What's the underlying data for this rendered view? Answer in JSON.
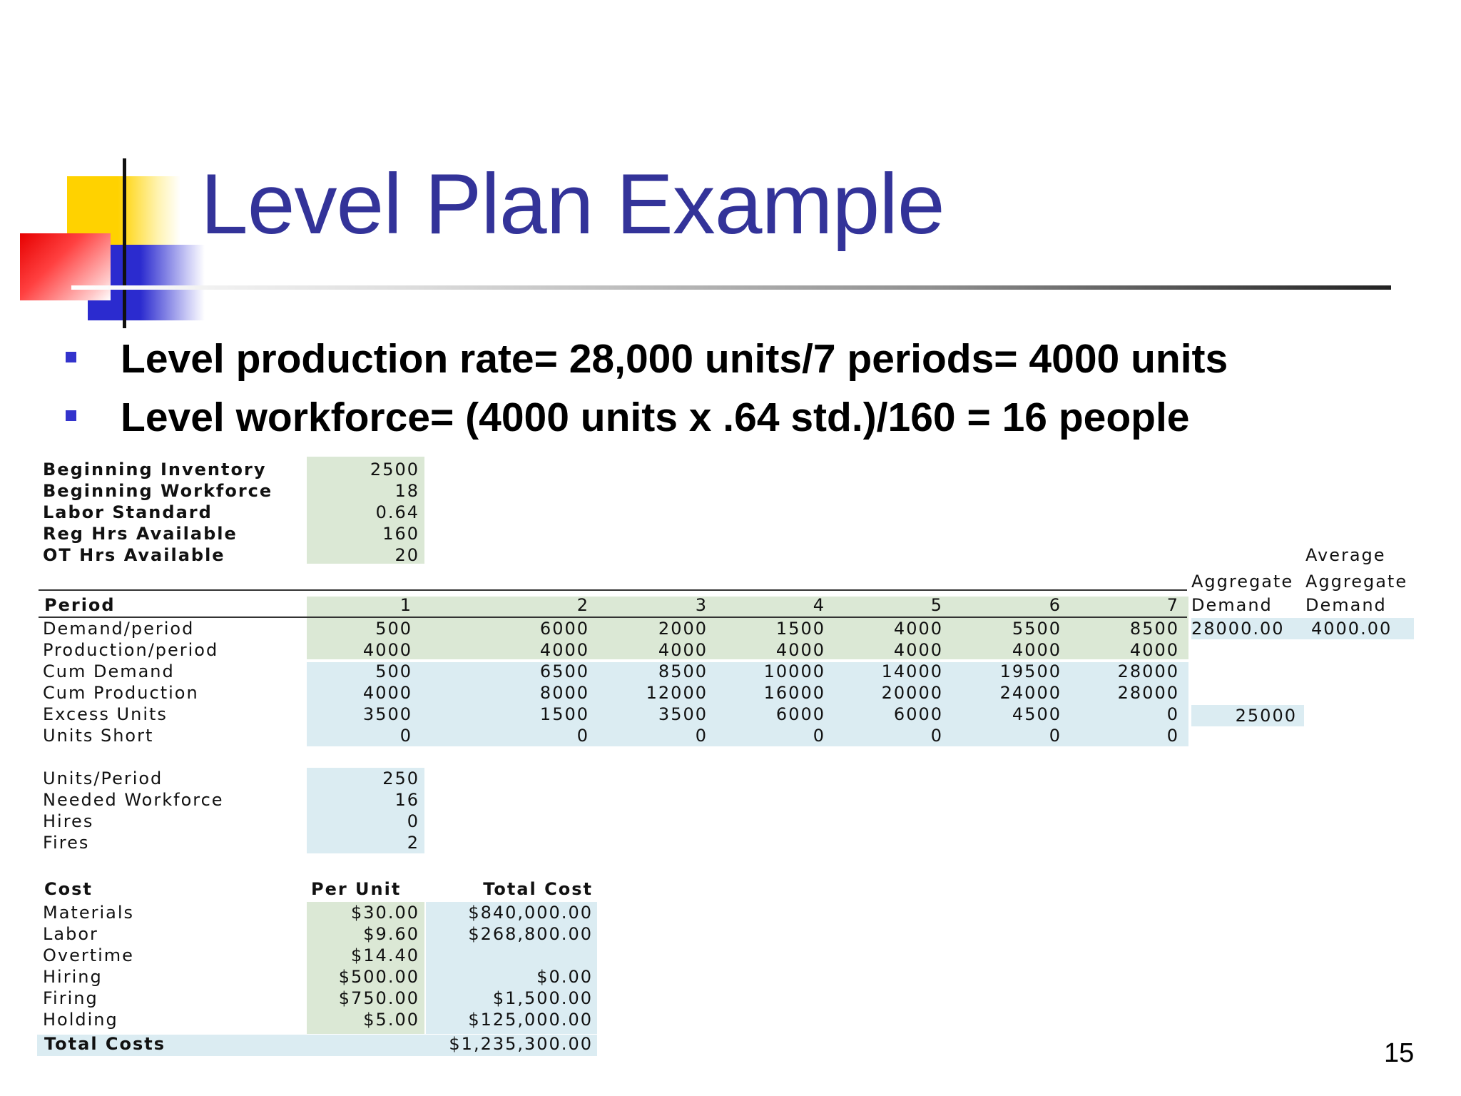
{
  "slide": {
    "title": "Level Plan Example",
    "bullets": [
      "Level production rate= 28,000 units/7 periods= 4000 units",
      "Level workforce= (4000 units x .64 std.)/160 = 16 people"
    ],
    "page_number": "15"
  },
  "params": [
    {
      "label": "Beginning Inventory",
      "value": "2500"
    },
    {
      "label": "Beginning Workforce",
      "value": "18"
    },
    {
      "label": "Labor Standard",
      "value": "0.64"
    },
    {
      "label": "Reg Hrs Available",
      "value": "160"
    },
    {
      "label": "OT Hrs Available",
      "value": "20"
    }
  ],
  "plan": {
    "period_label": "Period",
    "periods": [
      "1",
      "2",
      "3",
      "4",
      "5",
      "6",
      "7"
    ],
    "agg_header": [
      "Aggregate",
      "Demand"
    ],
    "avg_header": [
      "Average",
      "Aggregate",
      "Demand"
    ],
    "rows": [
      {
        "label": "Demand/period",
        "values": [
          "500",
          "6000",
          "2000",
          "1500",
          "4000",
          "5500",
          "8500"
        ]
      },
      {
        "label": "Production/period",
        "values": [
          "4000",
          "4000",
          "4000",
          "4000",
          "4000",
          "4000",
          "4000"
        ]
      },
      {
        "label": "Cum Demand",
        "values": [
          "500",
          "6500",
          "8500",
          "10000",
          "14000",
          "19500",
          "28000"
        ]
      },
      {
        "label": "Cum Production",
        "values": [
          "4000",
          "8000",
          "12000",
          "16000",
          "20000",
          "24000",
          "28000"
        ]
      },
      {
        "label": "Excess Units",
        "values": [
          "3500",
          "1500",
          "3500",
          "6000",
          "6000",
          "4500",
          "0"
        ]
      },
      {
        "label": "Units Short",
        "values": [
          "0",
          "0",
          "0",
          "0",
          "0",
          "0",
          "0"
        ]
      }
    ],
    "aggregate_demand": "28000.00",
    "average_demand": "4000.00",
    "excess_total": "25000"
  },
  "workforce": [
    {
      "label": "Units/Period",
      "value": "250"
    },
    {
      "label": "Needed Workforce",
      "value": "16"
    },
    {
      "label": "Hires",
      "value": "0"
    },
    {
      "label": "Fires",
      "value": "2"
    }
  ],
  "costs": {
    "header": {
      "cost": "Cost",
      "per_unit": "Per Unit",
      "total": "Total Cost"
    },
    "rows": [
      {
        "label": "Materials",
        "per_unit": "$30.00",
        "total": "$840,000.00"
      },
      {
        "label": "Labor",
        "per_unit": "$9.60",
        "total": "$268,800.00"
      },
      {
        "label": "Overtime",
        "per_unit": "$14.40",
        "total": ""
      },
      {
        "label": "Hiring",
        "per_unit": "$500.00",
        "total": "$0.00"
      },
      {
        "label": "Firing",
        "per_unit": "$750.00",
        "total": "$1,500.00"
      },
      {
        "label": "Holding",
        "per_unit": "$5.00",
        "total": "$125,000.00"
      }
    ],
    "total_label": "Total    Costs",
    "total_value": "$1,235,300.00"
  }
}
